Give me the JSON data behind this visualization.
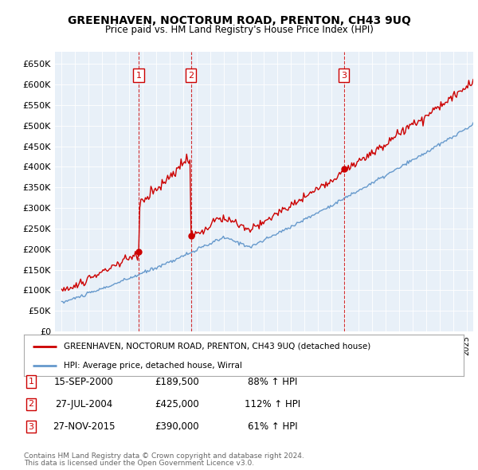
{
  "title": "GREENHAVEN, NOCTORUM ROAD, PRENTON, CH43 9UQ",
  "subtitle": "Price paid vs. HM Land Registry's House Price Index (HPI)",
  "red_label": "GREENHAVEN, NOCTORUM ROAD, PRENTON, CH43 9UQ (detached house)",
  "blue_label": "HPI: Average price, detached house, Wirral",
  "sale_points": [
    {
      "num": 1,
      "date_str": "15-SEP-2000",
      "date_x": 2000.71,
      "price": 189500,
      "pct": "88%",
      "dir": "↑"
    },
    {
      "num": 2,
      "date_str": "27-JUL-2004",
      "date_x": 2004.57,
      "price": 425000,
      "pct": "112%",
      "dir": "↑"
    },
    {
      "num": 3,
      "date_str": "27-NOV-2015",
      "date_x": 2015.91,
      "price": 390000,
      "pct": "61%",
      "dir": "↑"
    }
  ],
  "footnote1": "Contains HM Land Registry data © Crown copyright and database right 2024.",
  "footnote2": "This data is licensed under the Open Government Licence v3.0.",
  "ylim": [
    0,
    680000
  ],
  "xlim_start": 1994.5,
  "xlim_end": 2025.5,
  "background_color": "#e8f0f8"
}
